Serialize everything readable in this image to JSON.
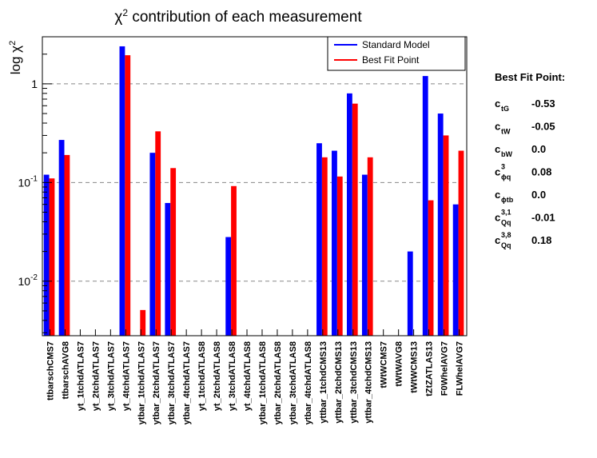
{
  "chart_data": {
    "type": "bar",
    "title_prefix": "χ",
    "title_sup": "2",
    "title_suffix": " contribution of each measurement",
    "ylabel_prefix": "log χ",
    "ylabel_sup": "2",
    "yscale": "log",
    "ylim": [
      0.0028,
      3.0
    ],
    "yticks": [
      {
        "value": 0.01,
        "base": "10",
        "exp": "-2"
      },
      {
        "value": 0.1,
        "base": "10",
        "exp": "-1"
      },
      {
        "value": 1,
        "base": "1",
        "exp": ""
      }
    ],
    "grid": "horizontal-dashed",
    "legend_position": "top-right",
    "categories": [
      "ttbarschCMS7",
      "ttbarschAVG8",
      "yt_1tchdATLAS7",
      "yt_2tchdATLAS7",
      "yt_3tchdATLAS7",
      "yt_4tchdATLAS7",
      "ytbar_1tchdATLAS7",
      "ytbar_2tchdATLAS7",
      "ytbar_3tchdATLAS7",
      "ytbar_4tchdATLAS7",
      "yt_1tchdATLAS8",
      "yt_2tchdATLAS8",
      "yt_3tchdATLAS8",
      "yt_4tchdATLAS8",
      "ytbar_1tchdATLAS8",
      "ytbar_2tchdATLAS8",
      "ytbar_3tchdATLAS8",
      "ytbar_4tchdATLAS8",
      "yttbar_1tchdCMS13",
      "yttbar_2tchdCMS13",
      "yttbar_3tchdCMS13",
      "yttbar_4tchdCMS13",
      "tWtWCMS7",
      "tWtWAVG8",
      "tWtWCMS13",
      "tZtZATLAS13",
      "F0WhelAVG7",
      "FLWhelAVG7"
    ],
    "series": [
      {
        "name": "Standard Model",
        "color": "#0000ff",
        "values": [
          0.12,
          0.27,
          null,
          null,
          null,
          2.4,
          null,
          0.2,
          0.062,
          null,
          null,
          null,
          0.028,
          null,
          null,
          null,
          null,
          null,
          0.25,
          0.21,
          0.8,
          0.12,
          null,
          null,
          0.02,
          1.2,
          0.5,
          0.06
        ]
      },
      {
        "name": "Best Fit Point",
        "color": "#ff0000",
        "values": [
          0.11,
          0.19,
          null,
          null,
          null,
          1.95,
          0.0051,
          0.33,
          0.14,
          null,
          null,
          null,
          0.092,
          null,
          null,
          null,
          null,
          null,
          0.18,
          0.115,
          0.63,
          0.18,
          null,
          null,
          null,
          0.066,
          0.3,
          0.21
        ]
      }
    ]
  },
  "best_fit": {
    "heading": "Best Fit Point:",
    "params": [
      {
        "base": "c",
        "sub": "tG",
        "sup": "",
        "value": "-0.53"
      },
      {
        "base": "c",
        "sub": "tW",
        "sup": "",
        "value": "-0.05"
      },
      {
        "base": "c",
        "sub": "bW",
        "sup": "",
        "value": "0.0"
      },
      {
        "base": "c",
        "sub": "ϕq",
        "sup": "3",
        "value": "0.08"
      },
      {
        "base": "c",
        "sub": "ϕtb",
        "sup": "",
        "value": "0.0"
      },
      {
        "base": "c",
        "sub": "Qq",
        "sup": "3,1",
        "value": "-0.01"
      },
      {
        "base": "c",
        "sub": "Qq",
        "sup": "3,8",
        "value": "0.18"
      }
    ]
  }
}
